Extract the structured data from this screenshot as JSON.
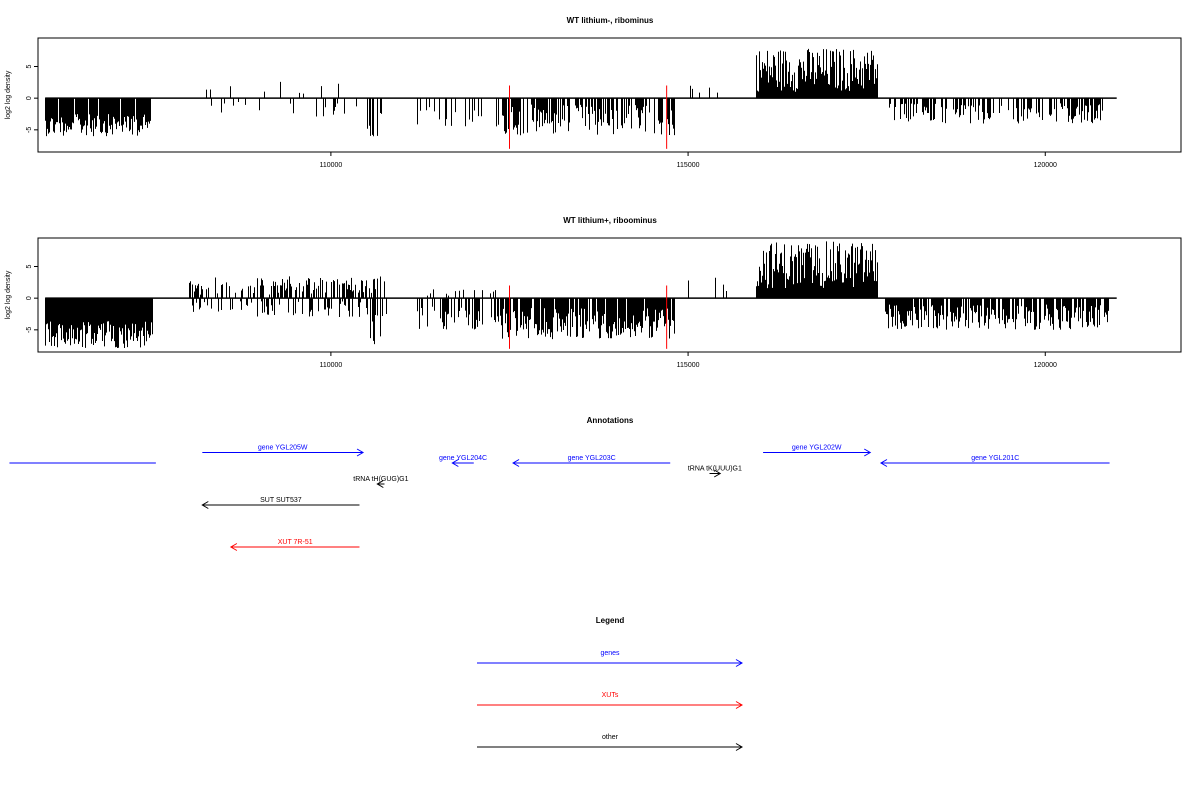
{
  "colors": {
    "gene": "#0000ff",
    "xut": "#ff0000",
    "other": "#000000",
    "highlight": "#ff0000"
  },
  "chart_data": [
    {
      "type": "bar",
      "title": "WT lithium-, ribominus",
      "ylabel": "log2 log density",
      "xlim": [
        105900,
        121900
      ],
      "ylim": [
        -8.5,
        9.5
      ],
      "x_ticks": [
        110000,
        115000,
        120000
      ],
      "y_ticks": [
        -5,
        0,
        5
      ],
      "highlight_x": [
        112500,
        114700
      ],
      "regions": [
        {
          "start": 106000,
          "end": 107500,
          "sign": -1,
          "min": 2.5,
          "max": 6,
          "density": 0.9
        },
        {
          "start": 108200,
          "end": 110100,
          "sign": 1,
          "min": 0.5,
          "max": 2.6,
          "density": 0.05
        },
        {
          "start": 108200,
          "end": 110500,
          "sign": -1,
          "min": 0.5,
          "max": 3,
          "density": 0.08
        },
        {
          "start": 110500,
          "end": 110700,
          "sign": -1,
          "min": 1.5,
          "max": 6.5,
          "density": 0.5
        },
        {
          "start": 111200,
          "end": 112100,
          "sign": -1,
          "min": 1,
          "max": 4.5,
          "density": 0.35
        },
        {
          "start": 112300,
          "end": 114800,
          "sign": -1,
          "min": 1,
          "max": 6,
          "density": 0.6
        },
        {
          "start": 115000,
          "end": 115400,
          "sign": 1,
          "min": 0.5,
          "max": 2.3,
          "density": 0.1
        },
        {
          "start": 115950,
          "end": 117650,
          "sign": 1,
          "min": 1,
          "max": 8,
          "density": 1.0
        },
        {
          "start": 117800,
          "end": 120800,
          "sign": -1,
          "min": 0.8,
          "max": 4,
          "density": 0.5
        }
      ]
    },
    {
      "type": "bar",
      "title": "WT lithium+, riboominus",
      "ylabel": "log2 log density",
      "xlim": [
        105900,
        121900
      ],
      "ylim": [
        -8.5,
        9.5
      ],
      "x_ticks": [
        110000,
        115000,
        120000
      ],
      "y_ticks": [
        -5,
        0,
        5
      ],
      "highlight_x": [
        112500,
        114700
      ],
      "regions": [
        {
          "start": 106000,
          "end": 107500,
          "sign": -1,
          "min": 3.5,
          "max": 8,
          "density": 1.0
        },
        {
          "start": 108000,
          "end": 110800,
          "sign": 1,
          "min": 0.5,
          "max": 3.5,
          "density": 0.5
        },
        {
          "start": 108000,
          "end": 110800,
          "sign": -1,
          "min": 0.5,
          "max": 3,
          "density": 0.3
        },
        {
          "start": 110500,
          "end": 110700,
          "sign": -1,
          "min": 2,
          "max": 7.5,
          "density": 0.5
        },
        {
          "start": 111200,
          "end": 112300,
          "sign": -1,
          "min": 1,
          "max": 5,
          "density": 0.5
        },
        {
          "start": 111200,
          "end": 112300,
          "sign": 1,
          "min": 0.3,
          "max": 1.5,
          "density": 0.15
        },
        {
          "start": 112300,
          "end": 114800,
          "sign": -1,
          "min": 1.5,
          "max": 6.5,
          "density": 0.9
        },
        {
          "start": 115000,
          "end": 115600,
          "sign": 1,
          "min": 0.5,
          "max": 4.5,
          "density": 0.12
        },
        {
          "start": 115950,
          "end": 117650,
          "sign": 1,
          "min": 1.5,
          "max": 9,
          "density": 1.0
        },
        {
          "start": 117750,
          "end": 120900,
          "sign": -1,
          "min": 1,
          "max": 5,
          "density": 0.8
        }
      ]
    }
  ],
  "annotations": {
    "title": "Annotations",
    "features": [
      {
        "label": "",
        "start": 105500,
        "end": 107550,
        "row": 0,
        "strand": "none",
        "type": "gene"
      },
      {
        "label": "gene YGL205W",
        "start": 108200,
        "end": 110450,
        "row": -1,
        "strand": "+",
        "type": "gene"
      },
      {
        "label": "gene YGL204C",
        "start": 111700,
        "end": 112000,
        "row": 0,
        "strand": "-",
        "type": "gene"
      },
      {
        "label": "gene YGL203C",
        "start": 112550,
        "end": 114750,
        "row": 0,
        "strand": "-",
        "type": "gene"
      },
      {
        "label": "gene YGL202W",
        "start": 116050,
        "end": 117550,
        "row": -1,
        "strand": "+",
        "type": "gene"
      },
      {
        "label": "gene YGL201C",
        "start": 117700,
        "end": 120900,
        "row": 0,
        "strand": "-",
        "type": "gene"
      },
      {
        "label": "tRNA tH(GUG)G1",
        "start": 110650,
        "end": 110750,
        "row": 2,
        "strand": "-",
        "type": "other"
      },
      {
        "label": "tRNA tK(UUU)G1",
        "start": 115300,
        "end": 115450,
        "row": 1,
        "strand": "+",
        "type": "other"
      },
      {
        "label": "SUT SUT537",
        "start": 108200,
        "end": 110400,
        "row": 4,
        "strand": "-",
        "type": "other"
      },
      {
        "label": "XUT 7R-51",
        "start": 108600,
        "end": 110400,
        "row": 8,
        "strand": "-",
        "type": "xut"
      }
    ]
  },
  "legend": {
    "title": "Legend",
    "items": [
      {
        "label": "genes",
        "type": "gene"
      },
      {
        "label": "XUTs",
        "type": "xut"
      },
      {
        "label": "other",
        "type": "other"
      }
    ]
  }
}
